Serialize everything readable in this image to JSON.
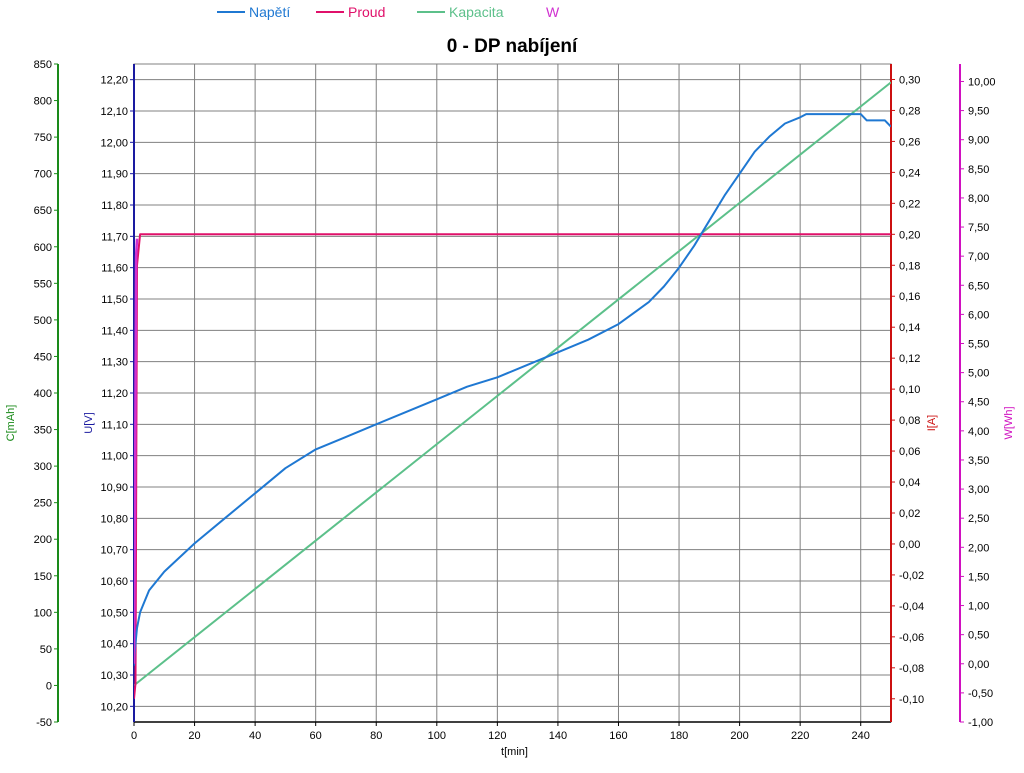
{
  "chart_data": {
    "type": "line",
    "title": "0 - DP nabíjení",
    "legend": {
      "placement": "top",
      "items": [
        {
          "label": "Napětí",
          "color": "#1f78d2",
          "marker": "line"
        },
        {
          "label": "Proud",
          "color": "#e0106a",
          "marker": "line"
        },
        {
          "label": "Kapacita",
          "color": "#5cc08a",
          "marker": "line"
        },
        {
          "label": "W",
          "color": "#d030d0",
          "marker": "none"
        }
      ]
    },
    "grid": true,
    "x_axis": {
      "label": "t[min]",
      "range": [
        0,
        250
      ],
      "ticks": [
        "0",
        "20",
        "40",
        "60",
        "80",
        "100",
        "120",
        "140",
        "160",
        "180",
        "200",
        "220",
        "240"
      ]
    },
    "axes": {
      "capacity": {
        "label": "C[mAh]",
        "color": "#1a8a1a",
        "range": [
          -50,
          850
        ],
        "side": "left-outer",
        "ticks": [
          "-50",
          "0",
          "50",
          "100",
          "150",
          "200",
          "250",
          "300",
          "350",
          "400",
          "450",
          "500",
          "550",
          "600",
          "650",
          "700",
          "750",
          "800",
          "850"
        ]
      },
      "voltage": {
        "label": "U[V]",
        "color": "#1a1aa0",
        "range": [
          10.15,
          12.25
        ],
        "side": "left-inner",
        "ticks": [
          "10,20",
          "10,30",
          "10,40",
          "10,50",
          "10,60",
          "10,70",
          "10,80",
          "10,90",
          "11,00",
          "11,10",
          "11,20",
          "11,30",
          "11,40",
          "11,50",
          "11,60",
          "11,70",
          "11,80",
          "11,90",
          "12,00",
          "12,10",
          "12,20"
        ]
      },
      "current": {
        "label": "I[A]",
        "color": "#cc1010",
        "range": [
          -0.115,
          0.31
        ],
        "side": "right-inner",
        "ticks": [
          "-0,10",
          "-0,08",
          "-0,06",
          "-0,04",
          "-0,02",
          "0,00",
          "0,02",
          "0,04",
          "0,06",
          "0,08",
          "0,10",
          "0,12",
          "0,14",
          "0,16",
          "0,18",
          "0,20",
          "0,22",
          "0,24",
          "0,26",
          "0,28",
          "0,30"
        ]
      },
      "energy": {
        "label": "W[Wh]",
        "color": "#d010c0",
        "range": [
          -1.0,
          10.3
        ],
        "side": "right-outer",
        "ticks": [
          "-1,00",
          "-0,50",
          "0,00",
          "0,50",
          "1,00",
          "1,50",
          "2,00",
          "2,50",
          "3,00",
          "3,50",
          "4,00",
          "4,50",
          "5,00",
          "5,50",
          "6,00",
          "6,50",
          "7,00",
          "7,50",
          "8,00",
          "8,50",
          "9,00",
          "9,50",
          "10,00"
        ]
      }
    },
    "series": [
      {
        "name": "Napětí",
        "axis": "voltage",
        "color": "#1f78d2",
        "x": [
          0,
          0.3,
          1,
          2,
          5,
          10,
          20,
          30,
          40,
          50,
          60,
          70,
          80,
          90,
          100,
          110,
          120,
          130,
          140,
          150,
          160,
          170,
          175,
          180,
          185,
          190,
          195,
          200,
          205,
          210,
          215,
          220,
          222,
          225,
          230,
          240,
          242,
          248,
          250
        ],
        "y": [
          10.33,
          10.38,
          10.45,
          10.5,
          10.57,
          10.63,
          10.72,
          10.8,
          10.88,
          10.96,
          11.02,
          11.06,
          11.1,
          11.14,
          11.18,
          11.22,
          11.25,
          11.29,
          11.33,
          11.37,
          11.42,
          11.49,
          11.54,
          11.6,
          11.67,
          11.75,
          11.83,
          11.9,
          11.97,
          12.02,
          12.06,
          12.08,
          12.09,
          12.09,
          12.09,
          12.09,
          12.07,
          12.07,
          12.05
        ]
      },
      {
        "name": "Proud",
        "axis": "current",
        "color": "#e0106a",
        "x": [
          0,
          0.5,
          1,
          2,
          250
        ],
        "y": [
          -0.1,
          -0.09,
          0.18,
          0.2,
          0.2
        ]
      },
      {
        "name": "Kapacita",
        "axis": "capacity",
        "color": "#5cc08a",
        "x": [
          0,
          250
        ],
        "y": [
          0,
          825
        ]
      },
      {
        "name": "W",
        "axis": "energy",
        "color": "#d030d0",
        "x": [
          0,
          0.3,
          0.7,
          1.0
        ],
        "y": [
          0.0,
          2.5,
          7.0,
          7.3
        ]
      }
    ]
  }
}
